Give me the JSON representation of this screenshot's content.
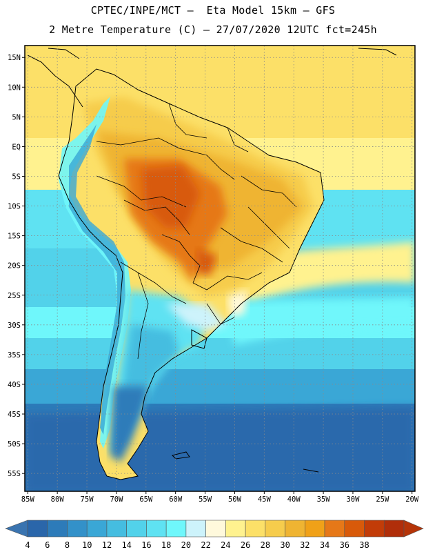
{
  "header": {
    "title_line1": "CPTEC/INPE/MCT –  Eta Model 15km – GFS",
    "title_line2": "2 Metre Temperature (C) – 27/07/2020 12UTC fct=245h"
  },
  "map": {
    "lat_labels": [
      "15N",
      "10N",
      "5N",
      "EQ",
      "5S",
      "10S",
      "15S",
      "20S",
      "25S",
      "30S",
      "35S",
      "40S",
      "45S",
      "50S",
      "55S"
    ],
    "lon_labels": [
      "85W",
      "80W",
      "75W",
      "70W",
      "65W",
      "60W",
      "55W",
      "50W",
      "45W",
      "40W",
      "35W",
      "30W",
      "25W",
      "20W"
    ],
    "lat_values": [
      15,
      10,
      5,
      0,
      -5,
      -10,
      -15,
      -20,
      -25,
      -30,
      -35,
      -40,
      -45,
      -50,
      -55
    ],
    "lon_values": [
      -85,
      -80,
      -75,
      -70,
      -65,
      -60,
      -55,
      -50,
      -45,
      -40,
      -35,
      -30,
      -25,
      -20
    ],
    "extent": {
      "lon_min": -85.5,
      "lon_max": -19.5,
      "lat_min": -58,
      "lat_max": 17
    }
  },
  "colorbar": {
    "labels": [
      "4",
      "6",
      "8",
      "10",
      "12",
      "14",
      "16",
      "18",
      "20",
      "22",
      "24",
      "26",
      "28",
      "30",
      "32",
      "34",
      "36",
      "38"
    ],
    "values": [
      4,
      6,
      8,
      10,
      12,
      14,
      16,
      18,
      20,
      22,
      24,
      26,
      28,
      30,
      32,
      34,
      36,
      38
    ],
    "colors": [
      "#2a66aa",
      "#2d7bb9",
      "#3391c9",
      "#3aa7d6",
      "#45bde0",
      "#52d2ea",
      "#5fe2f2",
      "#6ff7fb",
      "#cdf3fb",
      "#fff9dc",
      "#fff28f",
      "#fce068",
      "#f6cc4c",
      "#efb432",
      "#f0a118",
      "#e67818",
      "#d85a0a",
      "#c23c08",
      "#b02e0a"
    ],
    "under_color": "#3a74b0",
    "over_color": "#b53408"
  }
}
